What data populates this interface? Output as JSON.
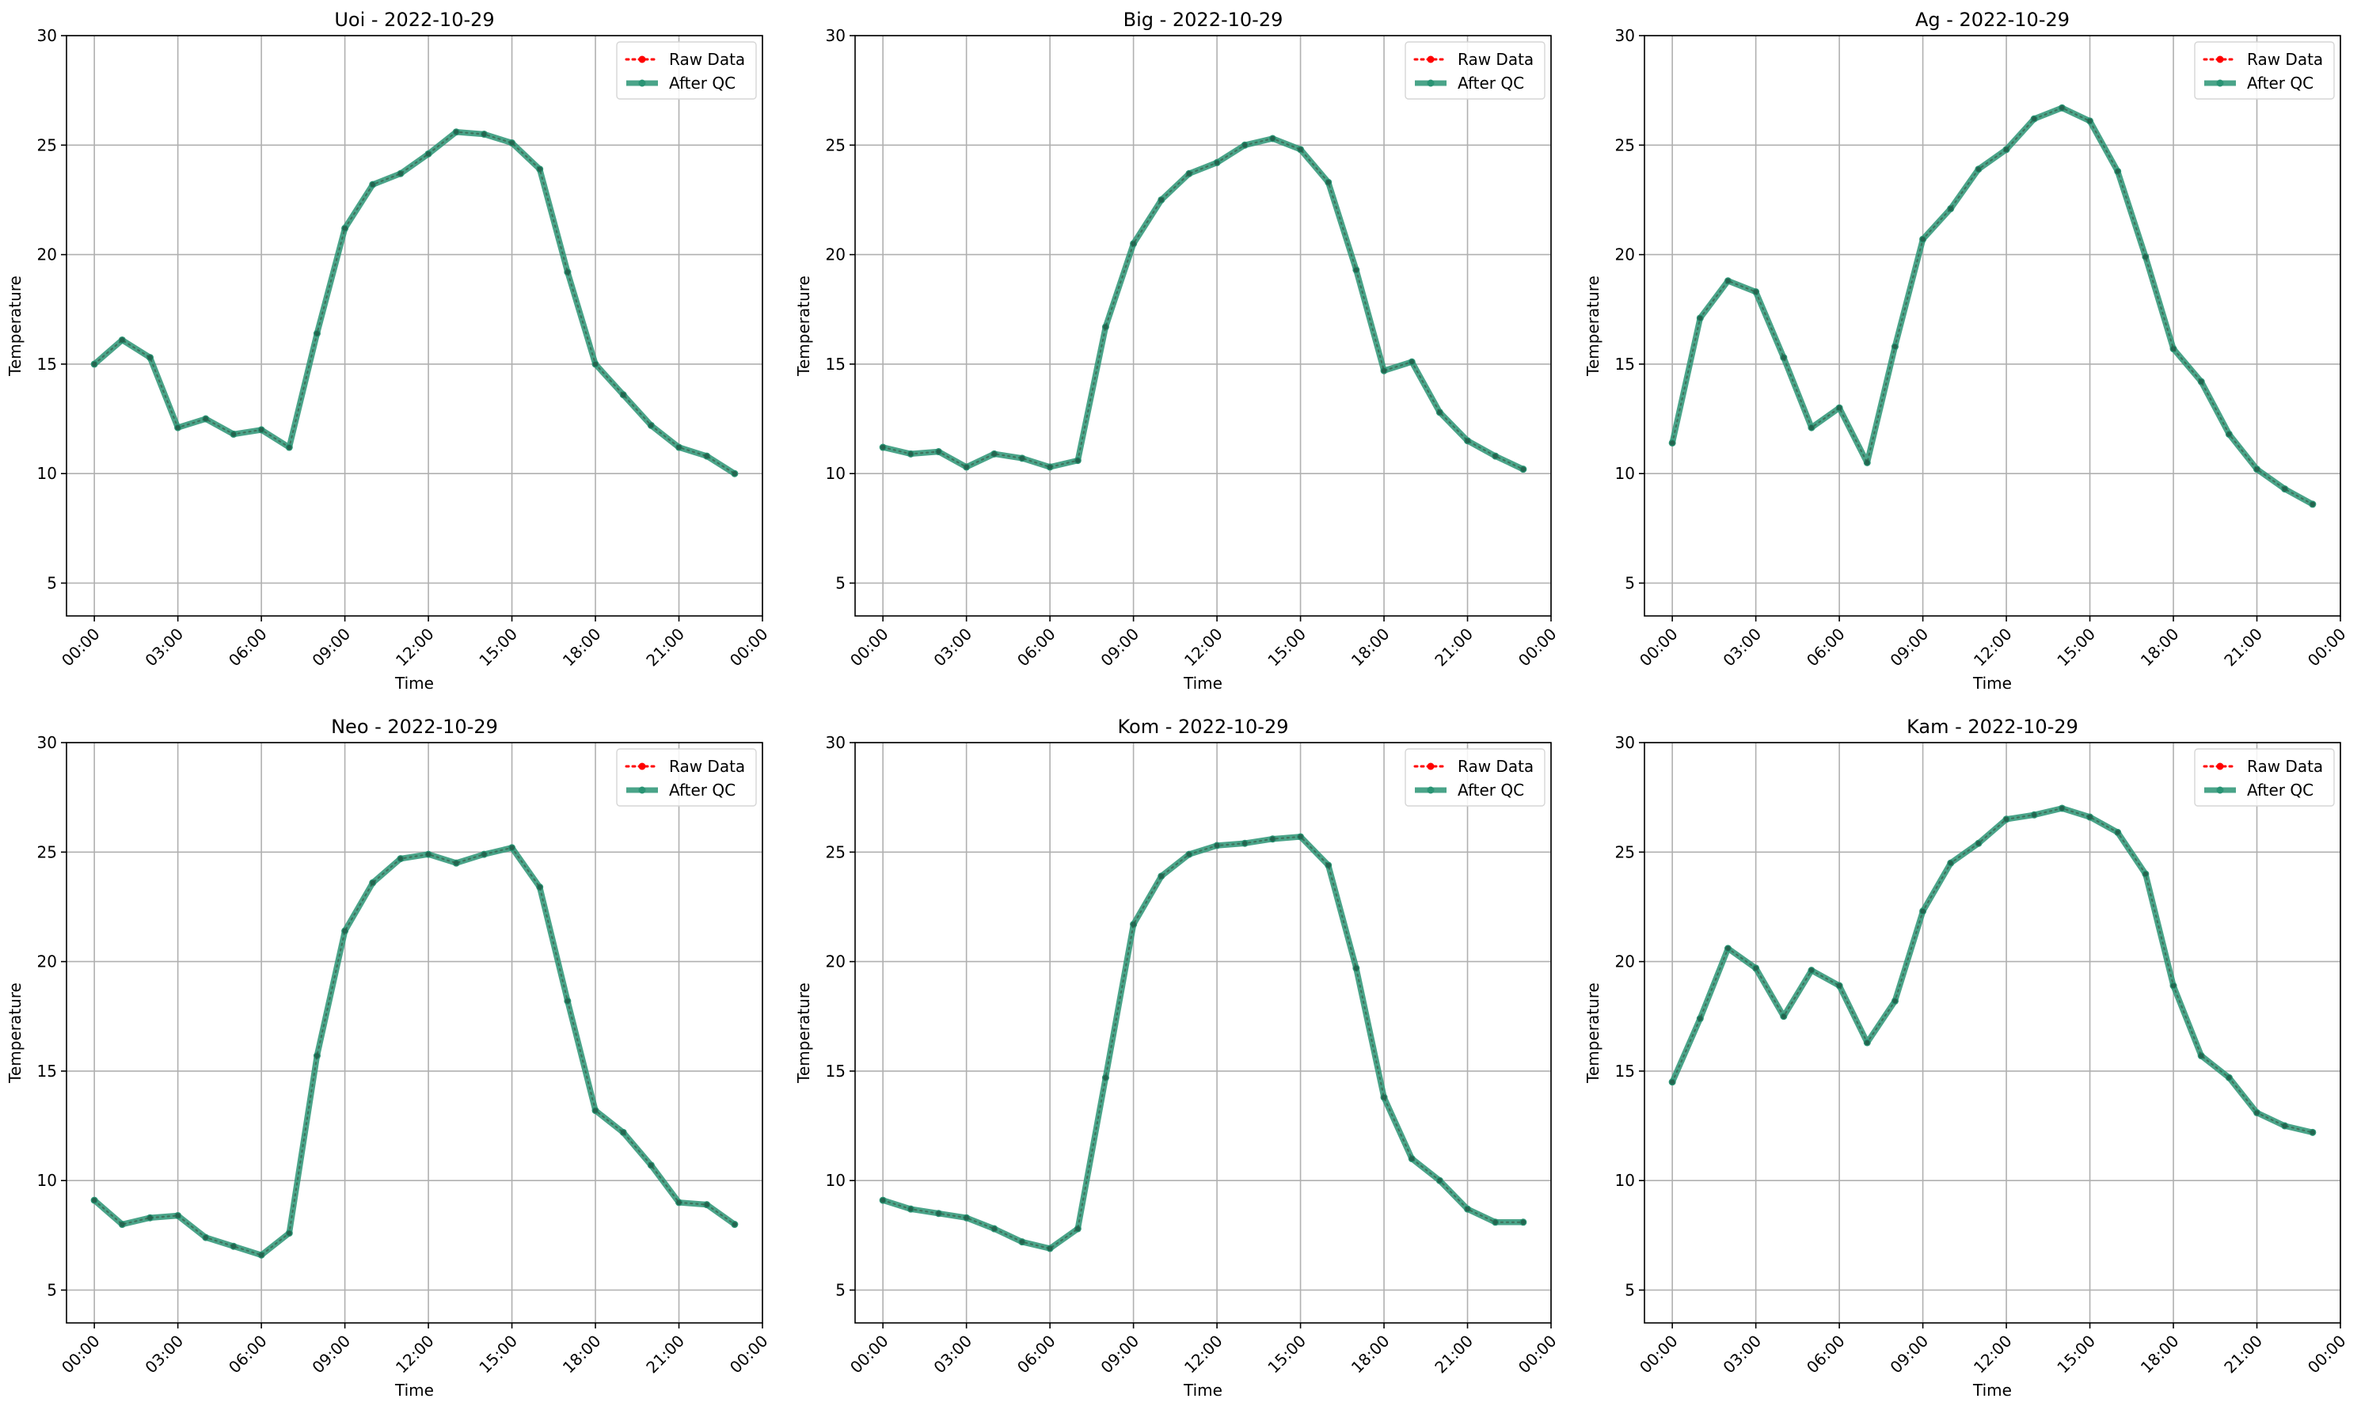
{
  "colors": {
    "raw": "#ff0000",
    "qc": "#2a9474",
    "grid": "#b0b0b0",
    "axis": "#000000"
  },
  "chart_data": [
    {
      "type": "line",
      "title": "Uoi - 2022-10-29",
      "xlabel": "Time",
      "ylabel": "Temperature",
      "xticks": [
        "00:00",
        "03:00",
        "06:00",
        "09:00",
        "12:00",
        "15:00",
        "18:00",
        "21:00",
        "00:00"
      ],
      "yticks": [
        "5",
        "10",
        "15",
        "20",
        "25",
        "30"
      ],
      "ylim": [
        3.5,
        30
      ],
      "grid": true,
      "legend": "top-right",
      "legend_labels": [
        "Raw Data",
        "After QC"
      ],
      "hours": [
        0,
        1,
        2,
        3,
        4,
        5,
        6,
        7,
        8,
        9,
        10,
        11,
        12,
        13,
        14,
        15,
        16,
        17,
        18,
        19,
        20,
        21,
        22,
        23
      ],
      "raw": [
        15.0,
        16.1,
        15.3,
        12.1,
        12.5,
        11.8,
        12.0,
        11.2,
        16.4,
        21.2,
        23.2,
        23.7,
        24.6,
        25.6,
        25.5,
        25.1,
        23.9,
        19.2,
        15.0,
        13.6,
        12.2,
        11.2,
        10.8,
        10.0
      ],
      "qc": [
        15.0,
        16.1,
        15.3,
        12.1,
        12.5,
        11.8,
        12.0,
        11.2,
        16.4,
        21.2,
        23.2,
        23.7,
        24.6,
        25.6,
        25.5,
        25.1,
        23.9,
        19.2,
        15.0,
        13.6,
        12.2,
        11.2,
        10.8,
        10.0
      ]
    },
    {
      "type": "line",
      "title": "Big - 2022-10-29",
      "xlabel": "Time",
      "ylabel": "Temperature",
      "xticks": [
        "00:00",
        "03:00",
        "06:00",
        "09:00",
        "12:00",
        "15:00",
        "18:00",
        "21:00",
        "00:00"
      ],
      "yticks": [
        "5",
        "10",
        "15",
        "20",
        "25",
        "30"
      ],
      "ylim": [
        3.5,
        30
      ],
      "grid": true,
      "legend": "top-right",
      "legend_labels": [
        "Raw Data",
        "After QC"
      ],
      "hours": [
        0,
        1,
        2,
        3,
        4,
        5,
        6,
        7,
        8,
        9,
        10,
        11,
        12,
        13,
        14,
        15,
        16,
        17,
        18,
        19,
        20,
        21,
        22,
        23
      ],
      "raw": [
        11.2,
        10.9,
        11.0,
        10.3,
        10.9,
        10.7,
        10.3,
        10.6,
        16.7,
        20.5,
        22.5,
        23.7,
        24.2,
        25.0,
        25.3,
        24.8,
        23.3,
        19.3,
        14.7,
        15.1,
        12.8,
        11.5,
        10.8,
        10.2
      ],
      "qc": [
        11.2,
        10.9,
        11.0,
        10.3,
        10.9,
        10.7,
        10.3,
        10.6,
        16.7,
        20.5,
        22.5,
        23.7,
        24.2,
        25.0,
        25.3,
        24.8,
        23.3,
        19.3,
        14.7,
        15.1,
        12.8,
        11.5,
        10.8,
        10.2
      ]
    },
    {
      "type": "line",
      "title": "Ag - 2022-10-29",
      "xlabel": "Time",
      "ylabel": "Temperature",
      "xticks": [
        "00:00",
        "03:00",
        "06:00",
        "09:00",
        "12:00",
        "15:00",
        "18:00",
        "21:00",
        "00:00"
      ],
      "yticks": [
        "5",
        "10",
        "15",
        "20",
        "25",
        "30"
      ],
      "ylim": [
        3.5,
        30
      ],
      "grid": true,
      "legend": "top-right",
      "legend_labels": [
        "Raw Data",
        "After QC"
      ],
      "hours": [
        0,
        1,
        2,
        3,
        4,
        5,
        6,
        7,
        8,
        9,
        10,
        11,
        12,
        13,
        14,
        15,
        16,
        17,
        18,
        19,
        20,
        21,
        22,
        23
      ],
      "raw": [
        11.4,
        17.1,
        18.8,
        18.3,
        15.3,
        12.1,
        13.0,
        10.5,
        15.8,
        20.7,
        22.1,
        23.9,
        24.8,
        26.2,
        26.7,
        26.1,
        23.8,
        19.9,
        15.7,
        14.2,
        11.8,
        10.2,
        9.3,
        8.6
      ],
      "qc": [
        11.4,
        17.1,
        18.8,
        18.3,
        15.3,
        12.1,
        13.0,
        10.5,
        15.8,
        20.7,
        22.1,
        23.9,
        24.8,
        26.2,
        26.7,
        26.1,
        23.8,
        19.9,
        15.7,
        14.2,
        11.8,
        10.2,
        9.3,
        8.6
      ]
    },
    {
      "type": "line",
      "title": "Neo - 2022-10-29",
      "xlabel": "Time",
      "ylabel": "Temperature",
      "xticks": [
        "00:00",
        "03:00",
        "06:00",
        "09:00",
        "12:00",
        "15:00",
        "18:00",
        "21:00",
        "00:00"
      ],
      "yticks": [
        "5",
        "10",
        "15",
        "20",
        "25",
        "30"
      ],
      "ylim": [
        3.5,
        30
      ],
      "grid": true,
      "legend": "top-right",
      "legend_labels": [
        "Raw Data",
        "After QC"
      ],
      "hours": [
        0,
        1,
        2,
        3,
        4,
        5,
        6,
        7,
        8,
        9,
        10,
        11,
        12,
        13,
        14,
        15,
        16,
        17,
        18,
        19,
        20,
        21,
        22,
        23
      ],
      "raw": [
        9.1,
        8.0,
        8.3,
        8.4,
        7.4,
        7.0,
        6.6,
        7.6,
        15.7,
        21.4,
        23.6,
        24.7,
        24.9,
        24.5,
        24.9,
        25.2,
        23.4,
        18.2,
        13.2,
        12.2,
        10.7,
        9.0,
        8.9,
        8.0
      ],
      "qc": [
        9.1,
        8.0,
        8.3,
        8.4,
        7.4,
        7.0,
        6.6,
        7.6,
        15.7,
        21.4,
        23.6,
        24.7,
        24.9,
        24.5,
        24.9,
        25.2,
        23.4,
        18.2,
        13.2,
        12.2,
        10.7,
        9.0,
        8.9,
        8.0
      ]
    },
    {
      "type": "line",
      "title": "Kom - 2022-10-29",
      "xlabel": "Time",
      "ylabel": "Temperature",
      "xticks": [
        "00:00",
        "03:00",
        "06:00",
        "09:00",
        "12:00",
        "15:00",
        "18:00",
        "21:00",
        "00:00"
      ],
      "yticks": [
        "5",
        "10",
        "15",
        "20",
        "25",
        "30"
      ],
      "ylim": [
        3.5,
        30
      ],
      "grid": true,
      "legend": "top-right",
      "legend_labels": [
        "Raw Data",
        "After QC"
      ],
      "hours": [
        0,
        1,
        2,
        3,
        4,
        5,
        6,
        7,
        8,
        9,
        10,
        11,
        12,
        13,
        14,
        15,
        16,
        17,
        18,
        19,
        20,
        21,
        22,
        23
      ],
      "raw": [
        9.1,
        8.7,
        8.5,
        8.3,
        7.8,
        7.2,
        6.9,
        7.8,
        14.7,
        21.7,
        23.9,
        24.9,
        25.3,
        25.4,
        25.6,
        25.7,
        24.4,
        19.7,
        13.8,
        11.0,
        10.0,
        8.7,
        8.1,
        8.1
      ],
      "qc": [
        9.1,
        8.7,
        8.5,
        8.3,
        7.8,
        7.2,
        6.9,
        7.8,
        14.7,
        21.7,
        23.9,
        24.9,
        25.3,
        25.4,
        25.6,
        25.7,
        24.4,
        19.7,
        13.8,
        11.0,
        10.0,
        8.7,
        8.1,
        8.1
      ]
    },
    {
      "type": "line",
      "title": "Kam - 2022-10-29",
      "xlabel": "Time",
      "ylabel": "Temperature",
      "xticks": [
        "00:00",
        "03:00",
        "06:00",
        "09:00",
        "12:00",
        "15:00",
        "18:00",
        "21:00",
        "00:00"
      ],
      "yticks": [
        "5",
        "10",
        "15",
        "20",
        "25",
        "30"
      ],
      "ylim": [
        3.5,
        30
      ],
      "grid": true,
      "legend": "top-right",
      "legend_labels": [
        "Raw Data",
        "After QC"
      ],
      "hours": [
        0,
        1,
        2,
        3,
        4,
        5,
        6,
        7,
        8,
        9,
        10,
        11,
        12,
        13,
        14,
        15,
        16,
        17,
        18,
        19,
        20,
        21,
        22,
        23
      ],
      "raw": [
        14.5,
        17.4,
        20.6,
        19.7,
        17.5,
        19.6,
        18.9,
        16.3,
        18.2,
        22.3,
        24.5,
        25.4,
        26.5,
        26.7,
        27.0,
        26.6,
        25.9,
        24.0,
        18.9,
        15.7,
        14.7,
        13.1,
        12.5,
        12.2
      ],
      "qc": [
        14.5,
        17.4,
        20.6,
        19.7,
        17.5,
        19.6,
        18.9,
        16.3,
        18.2,
        22.3,
        24.5,
        25.4,
        26.5,
        26.7,
        27.0,
        26.6,
        25.9,
        24.0,
        18.9,
        15.7,
        14.7,
        13.1,
        12.5,
        12.2
      ]
    }
  ]
}
